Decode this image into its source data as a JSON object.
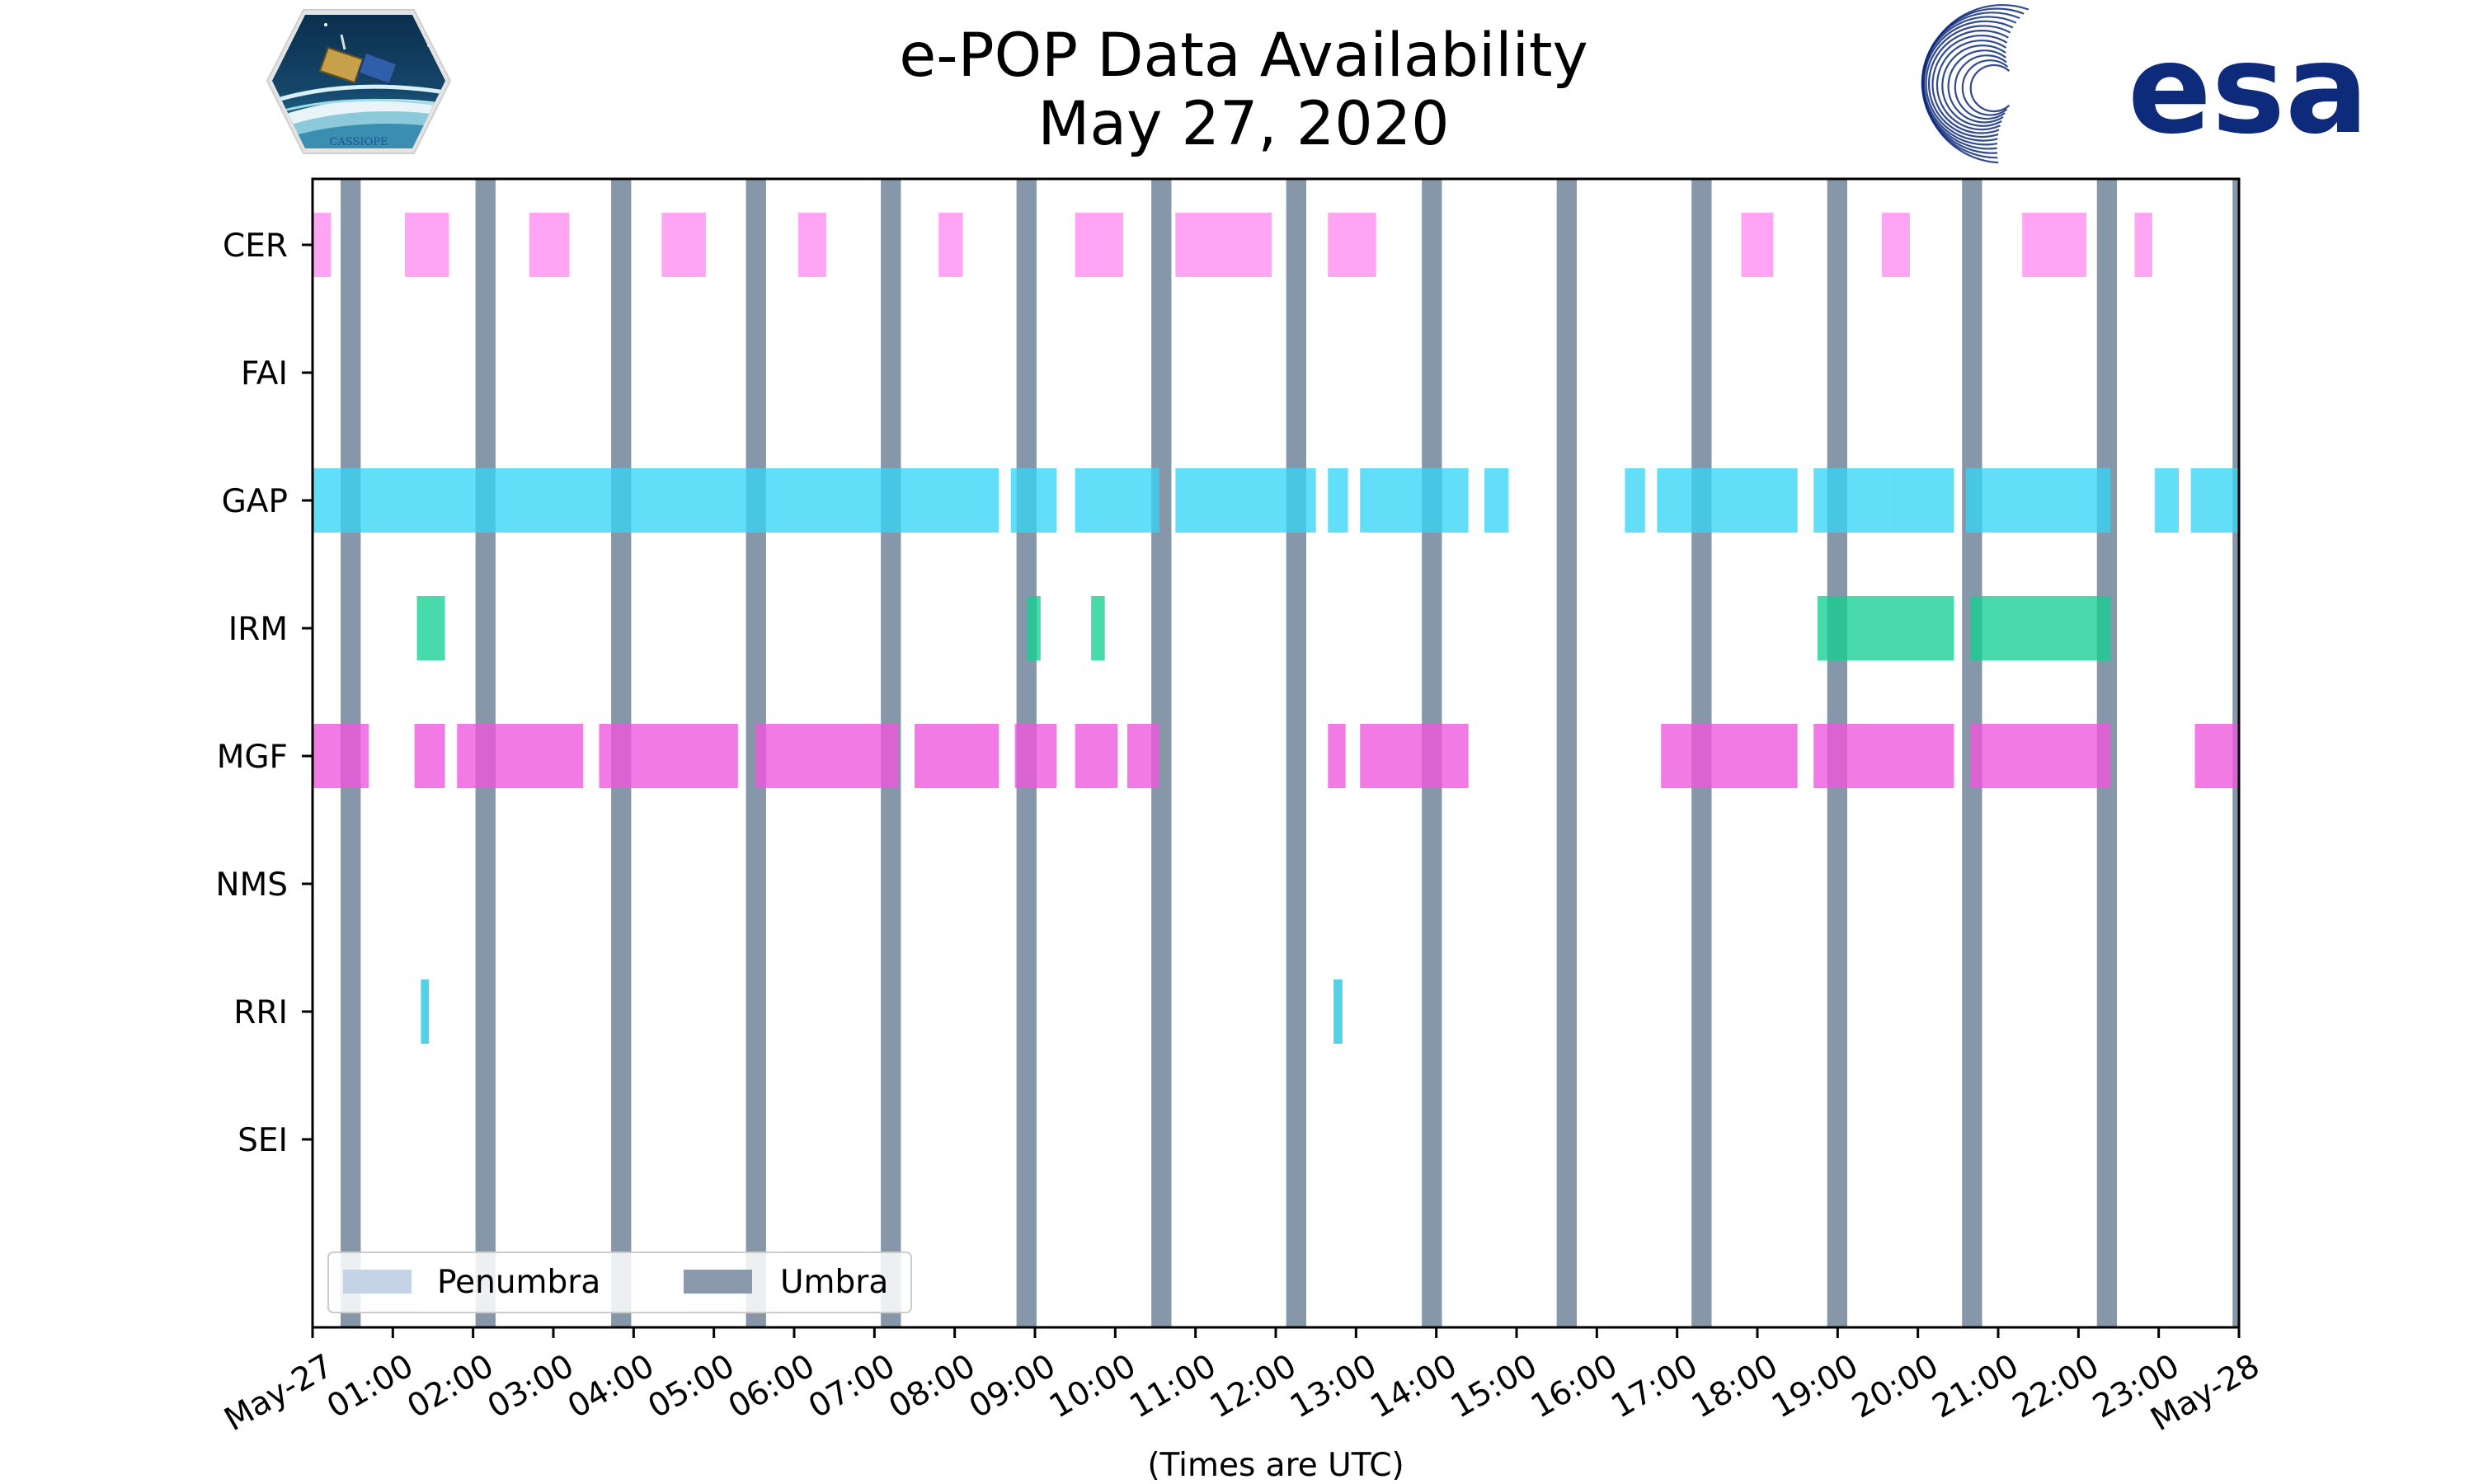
{
  "chart_data": {
    "type": "bar",
    "orientation": "horizontal-timeline",
    "title_line1": "e-POP Data Availability",
    "title_line2": "May 27, 2020",
    "xlabel": "(Times are UTC)",
    "ylabel": "",
    "xlim": [
      0,
      24
    ],
    "x_tick_values": [
      0,
      1,
      2,
      3,
      4,
      5,
      6,
      7,
      8,
      9,
      10,
      11,
      12,
      13,
      14,
      15,
      16,
      17,
      18,
      19,
      20,
      21,
      22,
      23,
      24
    ],
    "x_tick_labels": [
      "May-27",
      "01:00",
      "02:00",
      "03:00",
      "04:00",
      "05:00",
      "06:00",
      "07:00",
      "08:00",
      "09:00",
      "10:00",
      "11:00",
      "12:00",
      "13:00",
      "14:00",
      "15:00",
      "16:00",
      "17:00",
      "18:00",
      "19:00",
      "20:00",
      "21:00",
      "22:00",
      "23:00",
      "May-28"
    ],
    "categories": [
      "CER",
      "FAI",
      "GAP",
      "IRM",
      "MGF",
      "NMS",
      "RRI",
      "SEI"
    ],
    "series": [
      {
        "name": "CER",
        "color": "#ff8cef",
        "intervals": [
          [
            0.0,
            0.23
          ],
          [
            1.15,
            1.7
          ],
          [
            2.7,
            3.2
          ],
          [
            4.35,
            4.9
          ],
          [
            6.05,
            6.4
          ],
          [
            7.8,
            8.1
          ],
          [
            9.5,
            10.1
          ],
          [
            10.75,
            11.95
          ],
          [
            12.65,
            13.25
          ],
          [
            17.8,
            18.2
          ],
          [
            19.55,
            19.9
          ],
          [
            21.3,
            22.1
          ],
          [
            22.7,
            22.92
          ]
        ]
      },
      {
        "name": "FAI",
        "color": "#888888",
        "intervals": []
      },
      {
        "name": "GAP",
        "color": "#36d5f6",
        "intervals": [
          [
            0.0,
            8.55
          ],
          [
            8.7,
            9.27
          ],
          [
            9.5,
            10.55
          ],
          [
            10.75,
            12.5
          ],
          [
            12.65,
            12.9
          ],
          [
            13.05,
            14.4
          ],
          [
            14.6,
            14.9
          ],
          [
            16.35,
            16.6
          ],
          [
            16.75,
            18.5
          ],
          [
            18.7,
            19.65
          ],
          [
            19.65,
            20.45
          ],
          [
            20.6,
            22.4
          ],
          [
            22.95,
            23.25
          ],
          [
            23.4,
            24.0
          ]
        ]
      },
      {
        "name": "IRM",
        "color": "#14cf92",
        "intervals": [
          [
            1.3,
            1.65
          ],
          [
            8.9,
            9.07
          ],
          [
            9.7,
            9.87
          ],
          [
            18.75,
            20.45
          ],
          [
            20.65,
            22.4
          ]
        ]
      },
      {
        "name": "MGF",
        "color": "#ee55dd",
        "intervals": [
          [
            0.0,
            0.7
          ],
          [
            1.27,
            1.65
          ],
          [
            1.8,
            3.37
          ],
          [
            3.57,
            5.3
          ],
          [
            5.52,
            7.3
          ],
          [
            7.5,
            8.55
          ],
          [
            8.75,
            9.27
          ],
          [
            9.5,
            10.03
          ],
          [
            10.15,
            10.55
          ],
          [
            12.65,
            12.87
          ],
          [
            13.05,
            14.4
          ],
          [
            16.8,
            18.5
          ],
          [
            18.7,
            20.45
          ],
          [
            20.65,
            22.4
          ],
          [
            23.45,
            24.0
          ]
        ]
      },
      {
        "name": "NMS",
        "color": "#888888",
        "intervals": []
      },
      {
        "name": "RRI",
        "color": "#22c4e0",
        "intervals": [
          [
            1.35,
            1.45
          ],
          [
            12.72,
            12.83
          ]
        ]
      },
      {
        "name": "SEI",
        "color": "#888888",
        "intervals": []
      }
    ],
    "umbra_color": "#4e6682",
    "penumbra_color": "#c5d3e6",
    "umbra_intervals": [
      [
        0.35,
        0.6
      ],
      [
        2.03,
        2.28
      ],
      [
        3.72,
        3.97
      ],
      [
        5.4,
        5.65
      ],
      [
        7.08,
        7.33
      ],
      [
        8.77,
        9.02
      ],
      [
        10.45,
        10.7
      ],
      [
        12.13,
        12.38
      ],
      [
        13.82,
        14.07
      ],
      [
        15.5,
        15.75
      ],
      [
        17.18,
        17.43
      ],
      [
        18.87,
        19.12
      ],
      [
        20.55,
        20.8
      ],
      [
        22.23,
        22.48
      ],
      [
        23.92,
        24.0
      ]
    ],
    "legend": [
      {
        "label": "Penumbra",
        "color": "#c5d3e6"
      },
      {
        "label": "Umbra",
        "color": "#8a9aac"
      }
    ],
    "legend_position": "lower-left",
    "grid": false
  },
  "logos": {
    "cassiope_text": "CASSIOPE",
    "esa_text": "esa",
    "esa_color": "#0e2a7a"
  }
}
